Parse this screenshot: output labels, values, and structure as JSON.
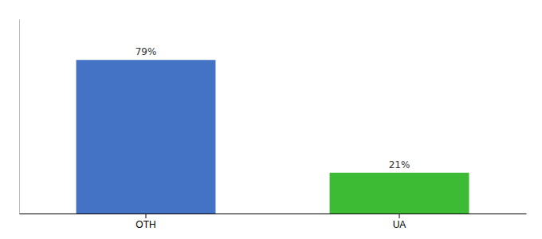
{
  "chart_data": {
    "type": "bar",
    "categories": [
      "OTH",
      "UA"
    ],
    "values": [
      79,
      21
    ],
    "value_labels": [
      "79%",
      "21%"
    ],
    "colors": [
      "#4472C4",
      "#3DBB35"
    ],
    "ylim": [
      0,
      100
    ],
    "data_labels": true,
    "tick_labels": "x"
  }
}
